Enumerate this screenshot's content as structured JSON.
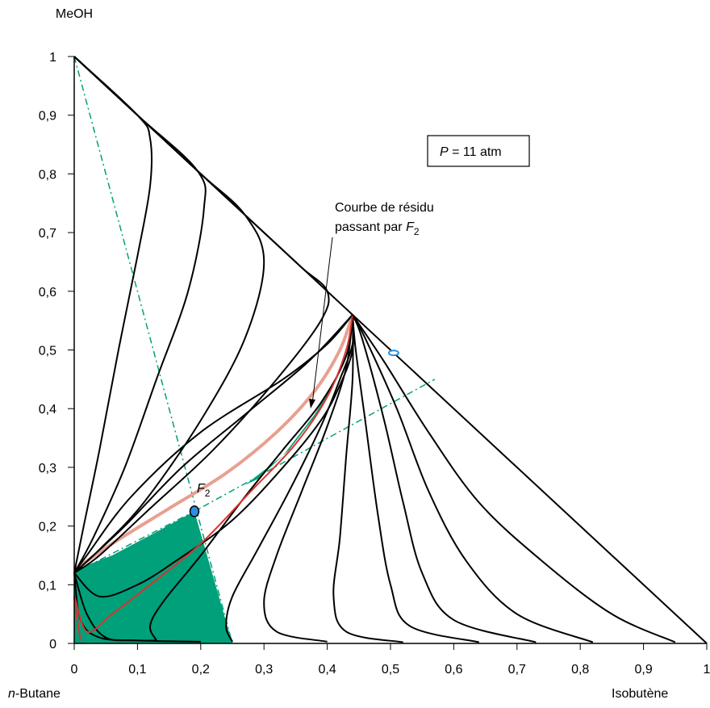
{
  "chart_data": {
    "type": "line",
    "diagram": "ternary residue curve map (right-triangle representation)",
    "components": {
      "top_vertex": "MeOH",
      "origin_vertex": "n-Butane",
      "right_vertex": "Isobutène"
    },
    "axis_labels": {
      "y": "MeOH",
      "x_left": "n-Butane",
      "x_right": "Isobutène"
    },
    "xlim": [
      0,
      1
    ],
    "ylim": [
      0,
      1
    ],
    "x_ticks": [
      "0",
      "0,1",
      "0,2",
      "0,3",
      "0,4",
      "0,5",
      "0,6",
      "0,7",
      "0,8",
      "0,9",
      "1"
    ],
    "y_ticks": [
      "0",
      "0,1",
      "0,2",
      "0,3",
      "0,4",
      "0,5",
      "0,6",
      "0,7",
      "0,8",
      "0,9",
      "1"
    ],
    "pressure_label": {
      "italic": "P",
      "rest": " = 11 atm"
    },
    "annotation": {
      "line1": "Courbe de résidu",
      "line2_prefix": "passant par ",
      "line2_italic": "F",
      "line2_sub": "2"
    },
    "feed_point": {
      "label_italic": "F",
      "label_sub": "2",
      "x": 0.19,
      "y": 0.225
    },
    "azeotrope_point": {
      "x": 0.505,
      "y": 0.495
    },
    "ternary_node": {
      "x": 0.44,
      "y": 0.56
    },
    "binary_node": {
      "x": 0.0,
      "y": 0.12
    },
    "colors": {
      "curve": "#000000",
      "residue_highlight": "#e8a090",
      "residue_red": "#d9342b",
      "region_fill": "#00a07a",
      "dash_line": "#00a07a",
      "point_fill": "#2a8fe0"
    },
    "residue_curves_upper": [
      [
        [
          0,
          1
        ],
        [
          0.1,
          0.9
        ],
        [
          0.12,
          0.86
        ],
        [
          0.12,
          0.78
        ],
        [
          0.1,
          0.66
        ],
        [
          0.07,
          0.5
        ],
        [
          0.04,
          0.33
        ],
        [
          0.015,
          0.2
        ],
        [
          0,
          0.12
        ]
      ],
      [
        [
          0,
          1
        ],
        [
          0.1,
          0.9
        ],
        [
          0.195,
          0.805
        ],
        [
          0.205,
          0.74
        ],
        [
          0.18,
          0.6
        ],
        [
          0.13,
          0.45
        ],
        [
          0.08,
          0.3
        ],
        [
          0.03,
          0.18
        ],
        [
          0,
          0.12
        ]
      ],
      [
        [
          0,
          1
        ],
        [
          0.1,
          0.9
        ],
        [
          0.2,
          0.8
        ],
        [
          0.27,
          0.73
        ],
        [
          0.3,
          0.65
        ],
        [
          0.27,
          0.52
        ],
        [
          0.2,
          0.38
        ],
        [
          0.11,
          0.24
        ],
        [
          0.04,
          0.16
        ],
        [
          0,
          0.12
        ]
      ],
      [
        [
          0,
          1
        ],
        [
          0.1,
          0.9
        ],
        [
          0.2,
          0.8
        ],
        [
          0.3,
          0.7
        ],
        [
          0.36,
          0.64
        ],
        [
          0.4,
          0.6
        ],
        [
          0.39,
          0.55
        ],
        [
          0.32,
          0.45
        ],
        [
          0.22,
          0.33
        ],
        [
          0.12,
          0.23
        ],
        [
          0.04,
          0.15
        ],
        [
          0,
          0.12
        ]
      ],
      [
        [
          0.44,
          0.56
        ],
        [
          0.37,
          0.48
        ],
        [
          0.27,
          0.39
        ],
        [
          0.17,
          0.3
        ],
        [
          0.08,
          0.2
        ],
        [
          0.02,
          0.14
        ],
        [
          0,
          0.12
        ]
      ],
      [
        [
          0.44,
          0.56
        ],
        [
          0.4,
          0.51
        ],
        [
          0.33,
          0.45
        ],
        [
          0.2,
          0.36
        ],
        [
          0.09,
          0.25
        ],
        [
          0.02,
          0.15
        ],
        [
          0,
          0.12
        ]
      ]
    ],
    "residue_curves_lower": [
      [
        [
          0,
          0.12
        ],
        [
          0.04,
          0.08
        ],
        [
          0.1,
          0.1
        ],
        [
          0.16,
          0.14
        ],
        [
          0.25,
          0.21
        ],
        [
          0.33,
          0.3
        ],
        [
          0.39,
          0.38
        ],
        [
          0.42,
          0.44
        ],
        [
          0.44,
          0.5
        ],
        [
          0.44,
          0.56
        ]
      ],
      [
        [
          0.13,
          0.005
        ],
        [
          0.12,
          0.03
        ],
        [
          0.14,
          0.07
        ],
        [
          0.2,
          0.15
        ],
        [
          0.27,
          0.25
        ],
        [
          0.33,
          0.33
        ],
        [
          0.39,
          0.41
        ],
        [
          0.43,
          0.49
        ],
        [
          0.44,
          0.56
        ]
      ],
      [
        [
          0.25,
          0.003
        ],
        [
          0.24,
          0.03
        ],
        [
          0.25,
          0.08
        ],
        [
          0.29,
          0.16
        ],
        [
          0.34,
          0.26
        ],
        [
          0.39,
          0.37
        ],
        [
          0.42,
          0.45
        ],
        [
          0.44,
          0.51
        ],
        [
          0.44,
          0.56
        ]
      ],
      [
        [
          0.4,
          0.003
        ],
        [
          0.32,
          0.02
        ],
        [
          0.3,
          0.07
        ],
        [
          0.32,
          0.15
        ],
        [
          0.36,
          0.26
        ],
        [
          0.4,
          0.37
        ],
        [
          0.43,
          0.47
        ],
        [
          0.44,
          0.56
        ]
      ],
      [
        [
          0.52,
          0.002
        ],
        [
          0.43,
          0.02
        ],
        [
          0.41,
          0.08
        ],
        [
          0.42,
          0.18
        ],
        [
          0.43,
          0.32
        ],
        [
          0.44,
          0.45
        ],
        [
          0.44,
          0.56
        ]
      ],
      [
        [
          0.64,
          0.002
        ],
        [
          0.53,
          0.03
        ],
        [
          0.5,
          0.1
        ],
        [
          0.48,
          0.22
        ],
        [
          0.46,
          0.38
        ],
        [
          0.445,
          0.5
        ],
        [
          0.44,
          0.56
        ]
      ],
      [
        [
          0.73,
          0.002
        ],
        [
          0.6,
          0.04
        ],
        [
          0.55,
          0.12
        ],
        [
          0.52,
          0.24
        ],
        [
          0.49,
          0.38
        ],
        [
          0.455,
          0.52
        ],
        [
          0.44,
          0.56
        ]
      ],
      [
        [
          0.82,
          0.002
        ],
        [
          0.7,
          0.05
        ],
        [
          0.62,
          0.14
        ],
        [
          0.56,
          0.26
        ],
        [
          0.51,
          0.4
        ],
        [
          0.46,
          0.52
        ],
        [
          0.44,
          0.56
        ]
      ],
      [
        [
          0.95,
          0.002
        ],
        [
          0.85,
          0.05
        ],
        [
          0.74,
          0.14
        ],
        [
          0.64,
          0.24
        ],
        [
          0.56,
          0.36
        ],
        [
          0.49,
          0.48
        ],
        [
          0.44,
          0.56
        ]
      ]
    ],
    "boundary_curves": [
      [
        [
          0.2,
          0.003
        ],
        [
          0.1,
          0.005
        ],
        [
          0.05,
          0.01
        ],
        [
          0.02,
          0.05
        ],
        [
          0,
          0.12
        ]
      ],
      [
        [
          0.13,
          0.005
        ],
        [
          0.1,
          0.005
        ],
        [
          0.04,
          0.01
        ],
        [
          0.01,
          0.04
        ],
        [
          0,
          0.12
        ]
      ]
    ],
    "residue_highlight_curve": [
      [
        0,
        0.125
      ],
      [
        0.06,
        0.17
      ],
      [
        0.15,
        0.23
      ],
      [
        0.24,
        0.29
      ],
      [
        0.32,
        0.36
      ],
      [
        0.38,
        0.43
      ],
      [
        0.42,
        0.5
      ],
      [
        0.44,
        0.56
      ]
    ],
    "residue_red_curve": [
      [
        0.01,
        0.005
      ],
      [
        0.0,
        0.08
      ],
      [
        0.02,
        0.02
      ],
      [
        0.06,
        0.05
      ],
      [
        0.12,
        0.1
      ],
      [
        0.2,
        0.17
      ],
      [
        0.28,
        0.26
      ],
      [
        0.35,
        0.34
      ],
      [
        0.4,
        0.42
      ],
      [
        0.43,
        0.5
      ],
      [
        0.44,
        0.56
      ]
    ],
    "fill_regions": [
      [
        [
          0,
          0
        ],
        [
          0.25,
          0
        ],
        [
          0.19,
          0.225
        ],
        [
          0.13,
          0.19
        ],
        [
          0.06,
          0.15
        ],
        [
          0,
          0.125
        ]
      ],
      [
        [
          0.27,
          0.27
        ],
        [
          0.33,
          0.32
        ],
        [
          0.38,
          0.39
        ],
        [
          0.42,
          0.46
        ],
        [
          0.39,
          0.4
        ],
        [
          0.34,
          0.33
        ],
        [
          0.29,
          0.28
        ]
      ]
    ],
    "dash_lines": [
      [
        [
          0,
          1
        ],
        [
          0.25,
          0
        ]
      ],
      [
        [
          0,
          0.12
        ],
        [
          0.19,
          0.225
        ],
        [
          0.57,
          0.45
        ]
      ]
    ]
  }
}
